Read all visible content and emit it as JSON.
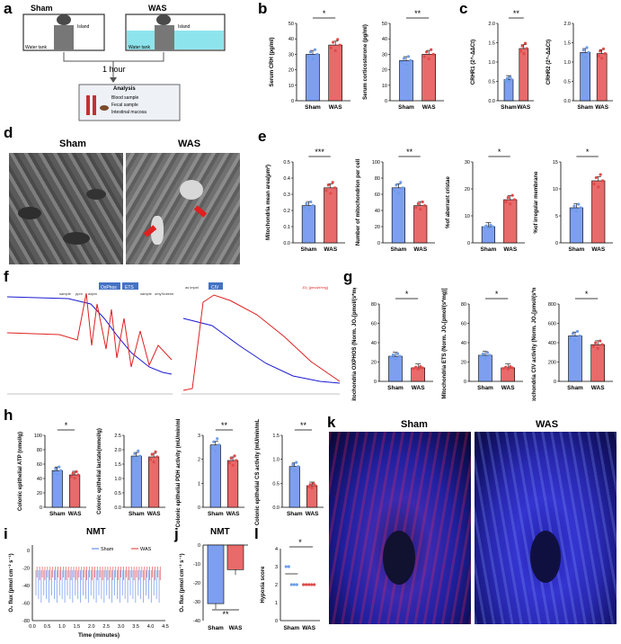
{
  "panels": {
    "a": "a",
    "b": "b",
    "c": "c",
    "d": "d",
    "e": "e",
    "f": "f",
    "g": "g",
    "h": "h",
    "i": "i",
    "j": "j",
    "k": "k",
    "l": "l"
  },
  "colors": {
    "sham": "#7e9ff0",
    "was": "#e86a6a",
    "sham_dot": "#6f9de8",
    "was_dot": "#e04a4a",
    "water": "#8ee4ec"
  },
  "panel_a": {
    "sham": "Sham",
    "was": "WAS",
    "island": "Island",
    "water_tank": "Water tank",
    "duration": "1 hour",
    "analysis_title": "Analysis",
    "analysis_items": [
      "Blood sample",
      "Fecal sample",
      "Intestinal mucosa"
    ]
  },
  "panel_b": [
    {
      "ylabel": "Serum CRH (pg/ml)",
      "sig": "*",
      "ylim": [
        0,
        50
      ],
      "ticks": [
        "0",
        "10",
        "20",
        "30",
        "40",
        "50"
      ],
      "categories": [
        "Sham",
        "WAS"
      ],
      "values": [
        30,
        36
      ]
    },
    {
      "ylabel": "Serum corticosterone (pg/ml)",
      "sig": "**",
      "ylim": [
        0,
        50
      ],
      "ticks": [
        "0",
        "10",
        "20",
        "30",
        "40",
        "50"
      ],
      "categories": [
        "Sham",
        "WAS"
      ],
      "values": [
        26,
        30
      ]
    }
  ],
  "panel_c": [
    {
      "ylabel": "CRHR1 (2^-ΔΔCt)",
      "sig": "**",
      "ylim": [
        0,
        2.0
      ],
      "ticks": [
        "0.0",
        "0.5",
        "1.0",
        "1.5",
        "2.0"
      ],
      "categories": [
        "Sham",
        "WAS"
      ],
      "values": [
        0.55,
        1.35
      ]
    },
    {
      "ylabel": "CRHR2 (2^-ΔΔCt)",
      "sig": "",
      "ylim": [
        0,
        2.0
      ],
      "ticks": [
        "0.0",
        "0.5",
        "1.0",
        "1.5",
        "2.0"
      ],
      "categories": [
        "Sham",
        "WAS"
      ],
      "values": [
        1.25,
        1.22
      ]
    }
  ],
  "panel_d": {
    "sham": "Sham",
    "was": "WAS"
  },
  "panel_e": [
    {
      "ylabel": "Mitochondria mean area(μm²)",
      "sig": "***",
      "ylim": [
        0,
        0.5
      ],
      "ticks": [
        "0.0",
        "0.1",
        "0.2",
        "0.3",
        "0.4",
        "0.5"
      ],
      "categories": [
        "Sham",
        "WAS"
      ],
      "values": [
        0.23,
        0.34
      ]
    },
    {
      "ylabel": "Number of mitochondrion per cell",
      "sig": "**",
      "ylim": [
        0,
        100
      ],
      "ticks": [
        "0",
        "20",
        "40",
        "60",
        "80",
        "100"
      ],
      "categories": [
        "Sham",
        "WAS"
      ],
      "values": [
        68,
        46
      ]
    },
    {
      "ylabel": "%of aberrant cristae",
      "sig": "*",
      "ylim": [
        0,
        30
      ],
      "ticks": [
        "0",
        "10",
        "20",
        "30"
      ],
      "categories": [
        "Sham",
        "WAS"
      ],
      "values": [
        6,
        16
      ]
    },
    {
      "ylabel": "%of irregular membrane",
      "sig": "*",
      "ylim": [
        0,
        15
      ],
      "ticks": [
        "0",
        "5",
        "10",
        "15"
      ],
      "categories": [
        "Sham",
        "WAS"
      ],
      "values": [
        6.5,
        11.5
      ]
    }
  ],
  "panel_f": {
    "left_markers": [
      "sample",
      "ppm",
      "adpm",
      "sample",
      "omyX",
      "rotene"
    ],
    "states": [
      "OxPhos",
      "ETS"
    ],
    "right_markers": [
      "as impel",
      "CIV"
    ],
    "flux_label": "JO₂ [pmol/s*mg]"
  },
  "panel_g": [
    {
      "ylabel": "Mitochondria OXPHOS (Norm. JO₂[pmol/(s*mg)])",
      "sig": "*",
      "ylim": [
        0,
        80
      ],
      "ticks": [
        "0",
        "20",
        "40",
        "60",
        "80"
      ],
      "categories": [
        "Sham",
        "WAS"
      ],
      "values": [
        26,
        14
      ]
    },
    {
      "ylabel": "Mitochondria ETS (Norm. JO₂[pmol/(s*mg)])",
      "sig": "*",
      "ylim": [
        0,
        80
      ],
      "ticks": [
        "0",
        "20",
        "40",
        "60",
        "80"
      ],
      "categories": [
        "Sham",
        "WAS"
      ],
      "values": [
        27,
        14
      ]
    },
    {
      "ylabel": "Mitochondria CIV activity (Norm. JO₂[pmol/(s*mg)])",
      "sig": "*",
      "ylim": [
        0,
        800
      ],
      "ticks": [
        "0",
        "200",
        "400",
        "600",
        "800"
      ],
      "categories": [
        "Sham",
        "WAS"
      ],
      "values": [
        470,
        380
      ]
    }
  ],
  "panel_h": [
    {
      "ylabel": "Colonic epithelial ATP (nmol/g)",
      "sig": "*",
      "ylim": [
        0,
        100
      ],
      "ticks": [
        "0",
        "20",
        "40",
        "60",
        "80",
        "100"
      ],
      "categories": [
        "Sham",
        "WAS"
      ],
      "values": [
        51,
        45
      ]
    },
    {
      "ylabel": "Colonic epithelial lactate(mmol/g)",
      "sig": "",
      "ylim": [
        0,
        2.5
      ],
      "ticks": [
        "0.0",
        "0.5",
        "1.0",
        "1.5",
        "2.0",
        "2.5"
      ],
      "categories": [
        "Sham",
        "WAS"
      ],
      "values": [
        1.78,
        1.75
      ]
    },
    {
      "ylabel": "Colonic epithelial PDH activity (mU/min/mL)",
      "sig": "**",
      "ylim": [
        0,
        3
      ],
      "ticks": [
        "0",
        "1",
        "2",
        "3"
      ],
      "categories": [
        "Sham",
        "WAS"
      ],
      "values": [
        2.6,
        1.95
      ]
    },
    {
      "ylabel": "Colonic epithelial CS activity (mU/min/mL)",
      "sig": "**",
      "ylim": [
        0,
        1.5
      ],
      "ticks": [
        "0.0",
        "0.5",
        "1.0",
        "1.5"
      ],
      "categories": [
        "Sham",
        "WAS"
      ],
      "values": [
        0.85,
        0.45
      ]
    }
  ],
  "panel_i": {
    "title": "NMT",
    "legend": [
      "Sham",
      "WAS"
    ],
    "ylabel": "O₂ flux (pmol cm⁻² s⁻¹)",
    "xlabel": "Time (minutes)",
    "yticks": [
      "0",
      "-20",
      "-40",
      "-60",
      "-80"
    ],
    "xticks": [
      "0.0",
      "0.5",
      "1.0",
      "1.5",
      "2.0",
      "2.5",
      "3.0",
      "3.5",
      "4.0",
      "4.5"
    ]
  },
  "panel_j": {
    "title": "NMT",
    "ylabel": "O₂ flux (pmol cm⁻² s⁻¹)",
    "sig": "**",
    "ylim": [
      -40,
      0
    ],
    "ticks": [
      "0",
      "-10",
      "-20",
      "-30",
      "-40"
    ],
    "categories": [
      "Sham",
      "WAS"
    ],
    "values": [
      -31,
      -13
    ]
  },
  "panel_k": {
    "sham": "Sham",
    "was": "WAS"
  },
  "panel_l": {
    "ylabel": "Hypoxia score",
    "sig": "*",
    "ylim": [
      0,
      4
    ],
    "ticks": [
      "0",
      "1",
      "2",
      "3",
      "4"
    ],
    "categories": [
      "Sham",
      "WAS"
    ],
    "values": [
      2.6,
      2.0
    ]
  },
  "chart_data": [
    {
      "type": "bar",
      "panel": "b1",
      "ylabel": "Serum CRH (pg/ml)",
      "categories": [
        "Sham",
        "WAS"
      ],
      "values": [
        30,
        36
      ],
      "ylim": [
        0,
        50
      ]
    },
    {
      "type": "bar",
      "panel": "b2",
      "ylabel": "Serum corticosterone (pg/ml)",
      "categories": [
        "Sham",
        "WAS"
      ],
      "values": [
        26,
        30
      ],
      "ylim": [
        0,
        50
      ]
    },
    {
      "type": "bar",
      "panel": "c1",
      "ylabel": "CRHR1 (2^-ΔΔCt)",
      "categories": [
        "Sham",
        "WAS"
      ],
      "values": [
        0.55,
        1.35
      ],
      "ylim": [
        0,
        2
      ]
    },
    {
      "type": "bar",
      "panel": "c2",
      "ylabel": "CRHR2 (2^-ΔΔCt)",
      "categories": [
        "Sham",
        "WAS"
      ],
      "values": [
        1.25,
        1.22
      ],
      "ylim": [
        0,
        2
      ]
    },
    {
      "type": "bar",
      "panel": "e1",
      "ylabel": "Mitochondria mean area(μm²)",
      "categories": [
        "Sham",
        "WAS"
      ],
      "values": [
        0.23,
        0.34
      ],
      "ylim": [
        0,
        0.5
      ]
    },
    {
      "type": "bar",
      "panel": "e2",
      "ylabel": "Number of mitochondrion per cell",
      "categories": [
        "Sham",
        "WAS"
      ],
      "values": [
        68,
        46
      ],
      "ylim": [
        0,
        100
      ]
    },
    {
      "type": "bar",
      "panel": "e3",
      "ylabel": "%of aberrant cristae",
      "categories": [
        "Sham",
        "WAS"
      ],
      "values": [
        6,
        16
      ],
      "ylim": [
        0,
        30
      ]
    },
    {
      "type": "bar",
      "panel": "e4",
      "ylabel": "%of irregular membrane",
      "categories": [
        "Sham",
        "WAS"
      ],
      "values": [
        6.5,
        11.5
      ],
      "ylim": [
        0,
        15
      ]
    },
    {
      "type": "bar",
      "panel": "g1",
      "ylabel": "Mitochondria OXPHOS",
      "categories": [
        "Sham",
        "WAS"
      ],
      "values": [
        26,
        14
      ],
      "ylim": [
        0,
        80
      ]
    },
    {
      "type": "bar",
      "panel": "g2",
      "ylabel": "Mitochondria ETS",
      "categories": [
        "Sham",
        "WAS"
      ],
      "values": [
        27,
        14
      ],
      "ylim": [
        0,
        80
      ]
    },
    {
      "type": "bar",
      "panel": "g3",
      "ylabel": "Mitochondria CIV activity",
      "categories": [
        "Sham",
        "WAS"
      ],
      "values": [
        470,
        380
      ],
      "ylim": [
        0,
        800
      ]
    },
    {
      "type": "bar",
      "panel": "h1",
      "ylabel": "Colonic epithelial ATP (nmol/g)",
      "categories": [
        "Sham",
        "WAS"
      ],
      "values": [
        51,
        45
      ],
      "ylim": [
        0,
        100
      ]
    },
    {
      "type": "bar",
      "panel": "h2",
      "ylabel": "Colonic epithelial lactate(mmol/g)",
      "categories": [
        "Sham",
        "WAS"
      ],
      "values": [
        1.78,
        1.75
      ],
      "ylim": [
        0,
        2.5
      ]
    },
    {
      "type": "bar",
      "panel": "h3",
      "ylabel": "Colonic epithelial PDH activity (mU/min/mL)",
      "categories": [
        "Sham",
        "WAS"
      ],
      "values": [
        2.6,
        1.95
      ],
      "ylim": [
        0,
        3
      ]
    },
    {
      "type": "bar",
      "panel": "h4",
      "ylabel": "Colonic epithelial CS activity (mU/min/mL)",
      "categories": [
        "Sham",
        "WAS"
      ],
      "values": [
        0.85,
        0.45
      ],
      "ylim": [
        0,
        1.5
      ]
    },
    {
      "type": "bar",
      "panel": "j",
      "title": "NMT",
      "ylabel": "O₂ flux (pmol cm⁻² s⁻¹)",
      "categories": [
        "Sham",
        "WAS"
      ],
      "values": [
        -31,
        -13
      ],
      "ylim": [
        -40,
        0
      ]
    },
    {
      "type": "scatter",
      "panel": "l",
      "ylabel": "Hypoxia score",
      "categories": [
        "Sham",
        "WAS"
      ],
      "values": [
        2.6,
        2.0
      ],
      "ylim": [
        0,
        4
      ]
    }
  ]
}
